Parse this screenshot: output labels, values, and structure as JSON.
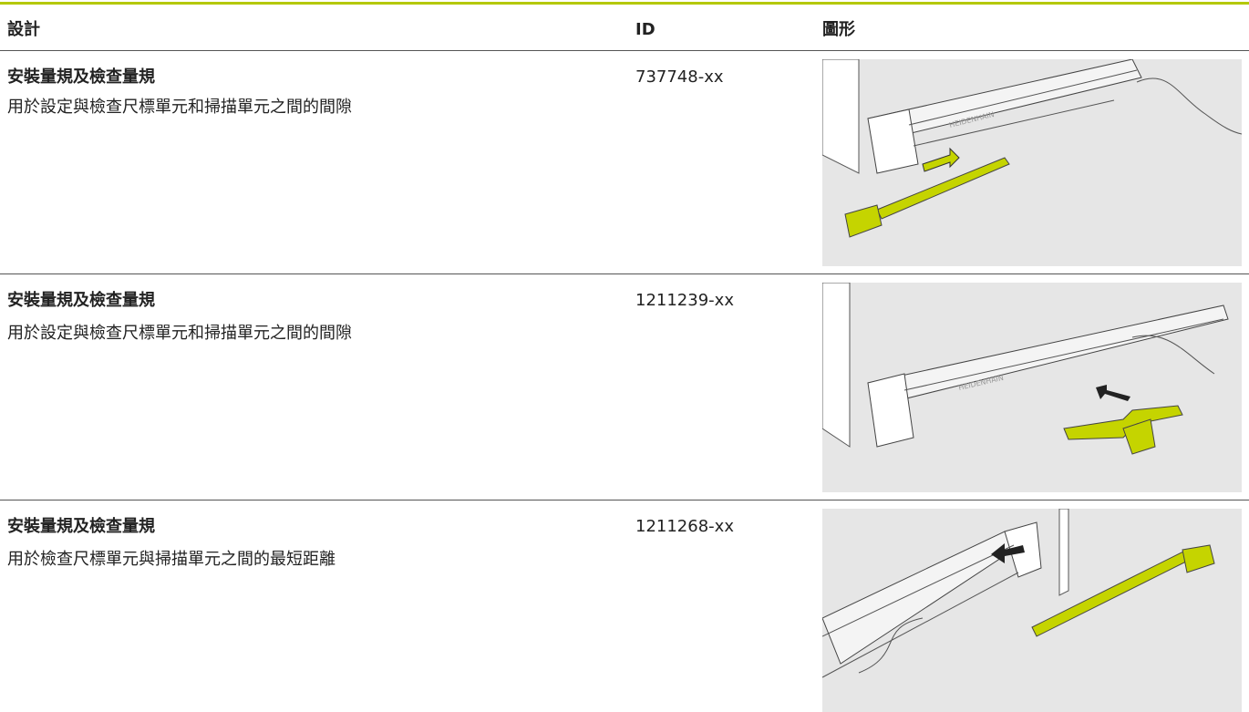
{
  "header": {
    "columns": [
      "設計",
      "ID",
      "圖形"
    ]
  },
  "table": {
    "rows": [
      {
        "title": "安裝量規及檢查量規",
        "description": "用於設定與檢查尺標單元和掃描單元之間的間隙",
        "id": "737748-xx",
        "image_label": "HEIDENHAIN"
      },
      {
        "title": "安裝量規及檢查量規",
        "description": "用於設定與檢查尺標單元和掃描單元之間的間隙",
        "id": "1211239-xx",
        "image_label": "HEIDENHAIN"
      },
      {
        "title": "安裝量規及檢查量規",
        "description": "用於檢查尺標單元與掃描單元之間的最短距離",
        "id": "1211268-xx"
      }
    ]
  }
}
